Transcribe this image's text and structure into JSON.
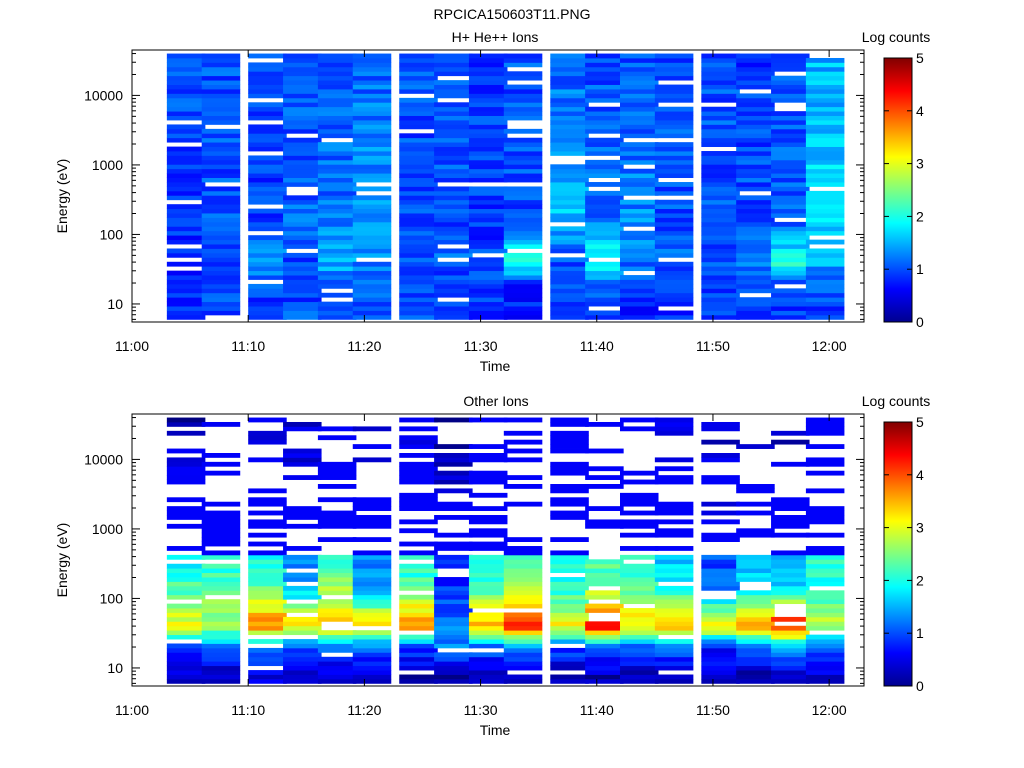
{
  "page_title": "RPCICA150603T11.PNG",
  "colors": {
    "background": "#ffffff",
    "axis": "#000000",
    "colormap": "jet"
  },
  "chart_data": [
    {
      "type": "heatmap",
      "title": "H+ He++ Ions",
      "xlabel": "Time",
      "ylabel": "Energy (eV)",
      "x_ticks": [
        "11:00",
        "11:10",
        "11:20",
        "11:30",
        "11:40",
        "11:50",
        "12:00"
      ],
      "x_range": [
        "11:00",
        "12:03"
      ],
      "y_scale": "log",
      "y_range": [
        5.5,
        45000
      ],
      "y_ticks": [
        {
          "value": 10,
          "label": "10"
        },
        {
          "value": 100,
          "label": "100"
        },
        {
          "value": 1000,
          "label": "1000"
        },
        {
          "value": 10000,
          "label": "10000"
        }
      ],
      "colorbar": {
        "label": "Log counts",
        "min": 0,
        "max": 5,
        "ticks": [
          "0",
          "1",
          "2",
          "3",
          "4",
          "5"
        ]
      },
      "grid": false,
      "legend": "colorbar-right",
      "time_bins": [
        "11:03",
        "11:06",
        "11:10",
        "11:13",
        "11:16",
        "11:19",
        "11:23",
        "11:26",
        "11:29",
        "11:32",
        "11:36",
        "11:39",
        "11:42",
        "11:45",
        "11:49",
        "11:52",
        "11:55",
        "11:58"
      ],
      "column_profile": [
        [
          0.9,
          0.8,
          0.8,
          0.9,
          1.0
        ],
        [
          1.0,
          0.9,
          0.9,
          1.0,
          1.0
        ],
        [
          0.9,
          1.0,
          1.3,
          0.9,
          1.0
        ],
        [
          1.0,
          0.9,
          1.0,
          1.1,
          1.0
        ],
        [
          0.9,
          1.1,
          1.5,
          1.2,
          1.0
        ],
        [
          1.0,
          1.0,
          1.3,
          1.4,
          1.1
        ],
        [
          1.0,
          0.9,
          1.0,
          1.0,
          1.0
        ],
        [
          1.0,
          0.9,
          1.1,
          1.0,
          1.0
        ],
        [
          0.8,
          0.9,
          0.9,
          0.9,
          0.9
        ],
        [
          0.8,
          0.8,
          2.2,
          1.0,
          1.0
        ],
        [
          0.9,
          1.1,
          1.0,
          1.6,
          1.1
        ],
        [
          0.9,
          1.0,
          2.0,
          1.2,
          1.0
        ],
        [
          0.8,
          1.0,
          1.2,
          1.3,
          1.0
        ],
        [
          0.9,
          0.9,
          1.1,
          1.0,
          1.0
        ],
        [
          0.9,
          0.8,
          1.0,
          1.0,
          1.0
        ],
        [
          1.0,
          1.0,
          1.3,
          1.0,
          0.9
        ],
        [
          0.9,
          0.8,
          2.1,
          1.1,
          1.0
        ],
        [
          0.9,
          1.0,
          1.5,
          1.7,
          1.5
        ]
      ]
    },
    {
      "type": "heatmap",
      "title": "Other Ions",
      "xlabel": "Time",
      "ylabel": "Energy (eV)",
      "x_ticks": [
        "11:00",
        "11:10",
        "11:20",
        "11:30",
        "11:40",
        "11:50",
        "12:00"
      ],
      "x_range": [
        "11:00",
        "12:03"
      ],
      "y_scale": "log",
      "y_range": [
        5.5,
        45000
      ],
      "y_ticks": [
        {
          "value": 10,
          "label": "10"
        },
        {
          "value": 100,
          "label": "100"
        },
        {
          "value": 1000,
          "label": "1000"
        },
        {
          "value": 10000,
          "label": "10000"
        }
      ],
      "colorbar": {
        "label": "Log counts",
        "min": 0,
        "max": 5,
        "ticks": [
          "0",
          "1",
          "2",
          "3",
          "4",
          "5"
        ]
      },
      "grid": false,
      "legend": "colorbar-right",
      "time_bins": [
        "11:03",
        "11:06",
        "11:10",
        "11:13",
        "11:16",
        "11:19",
        "11:23",
        "11:26",
        "11:29",
        "11:32",
        "11:36",
        "11:39",
        "11:42",
        "11:45",
        "11:49",
        "11:52",
        "11:55",
        "11:58"
      ],
      "column_profile": [
        [
          0.4,
          1.0,
          3.1,
          2.2,
          0.2
        ],
        [
          0.3,
          1.1,
          2.8,
          2.3,
          0.6
        ],
        [
          0.4,
          1.2,
          3.8,
          2.4,
          0.5
        ],
        [
          0.4,
          1.0,
          3.3,
          1.5,
          0.3
        ],
        [
          0.3,
          1.1,
          3.5,
          2.6,
          0.6
        ],
        [
          0.4,
          1.2,
          3.4,
          1.4,
          0.3
        ],
        [
          0.2,
          1.0,
          3.7,
          2.3,
          0.4
        ],
        [
          0.2,
          1.2,
          1.2,
          0.8,
          0.2
        ],
        [
          0.4,
          1.1,
          3.4,
          2.2,
          0.8
        ],
        [
          0.3,
          1.3,
          4.3,
          2.6,
          1.3
        ],
        [
          0.3,
          1.0,
          3.1,
          2.0,
          1.1
        ],
        [
          0.3,
          1.2,
          4.5,
          2.4,
          1.0
        ],
        [
          0.2,
          1.1,
          3.4,
          2.3,
          0.8
        ],
        [
          0.2,
          1.1,
          3.5,
          1.9,
          0.4
        ],
        [
          0.3,
          0.8,
          3.3,
          1.1,
          0.3
        ],
        [
          0.2,
          1.1,
          3.6,
          1.7,
          0.3
        ],
        [
          0.4,
          1.3,
          4.4,
          1.6,
          0.2
        ],
        [
          0.4,
          1.1,
          2.9,
          2.1,
          1.6
        ]
      ]
    }
  ]
}
